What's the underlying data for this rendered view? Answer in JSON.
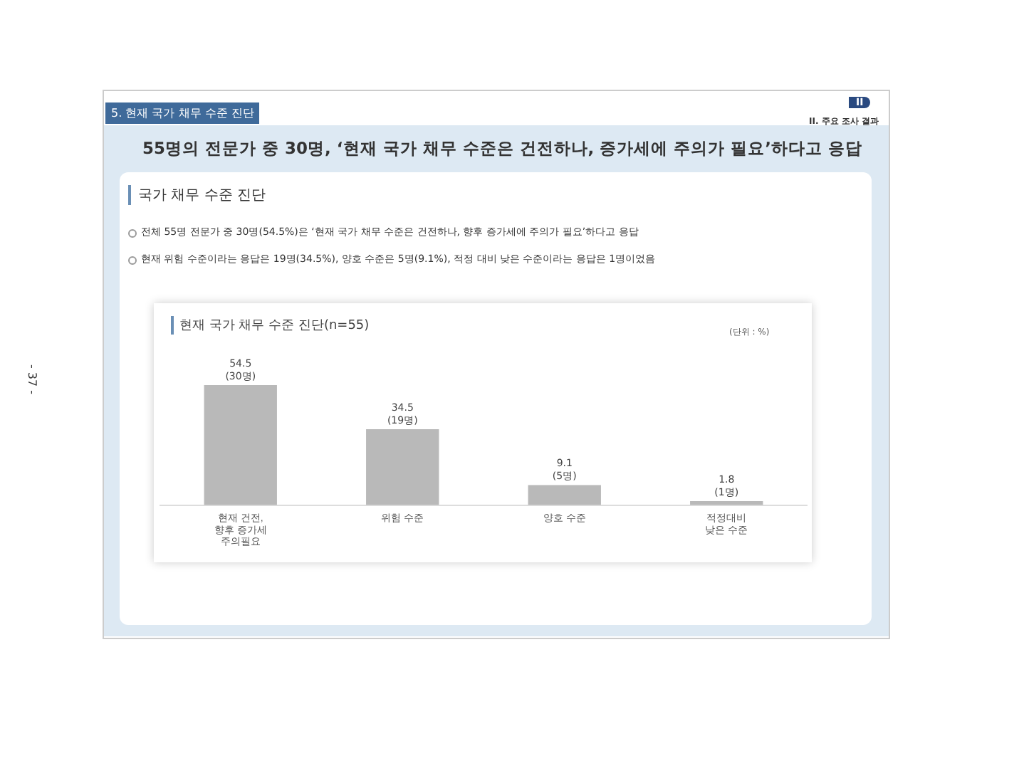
{
  "chart_data": {
    "type": "bar",
    "title": "현재 국가 채무 수준 진단(n=55)",
    "categories": [
      "현재 건전,\n향후 증가세\n주의필요",
      "위험 수준",
      "양호 수준",
      "적정대비\n낮은 수준"
    ],
    "values": [
      54.5,
      34.5,
      9.1,
      1.8
    ],
    "value_labels": [
      "54.5\n(30명)",
      "34.5\n(19명)",
      "9.1\n(5명)",
      "1.8\n(1명)"
    ],
    "color": "#b9b9b9",
    "grid": false,
    "legend": false,
    "tick_labels": "x",
    "annotations": [
      "5. 현재 국가 채무 수준 진단",
      "II",
      "II. 주요 조사 결과",
      "55명의 전문가 중 30명, ‘현재 국가 채무 수준은 건전하나, 증가세에 주의가 필요’하다고 응답",
      "국가 채무 수준 진단",
      "전체 55명 전문가 중 30명(54.5%)은 ‘현재 국가 채무 수준은 건전하나, 향후 증가세에 주의가 필요’하다고 응답",
      "현재 위험 수준이라는 응답은 19명(34.5%), 양호 수준은 5명(9.1%), 적정 대비 낮은 수준이라는 응답은 1명이었음",
      "(단위 : %)",
      "- 37 -"
    ]
  }
}
